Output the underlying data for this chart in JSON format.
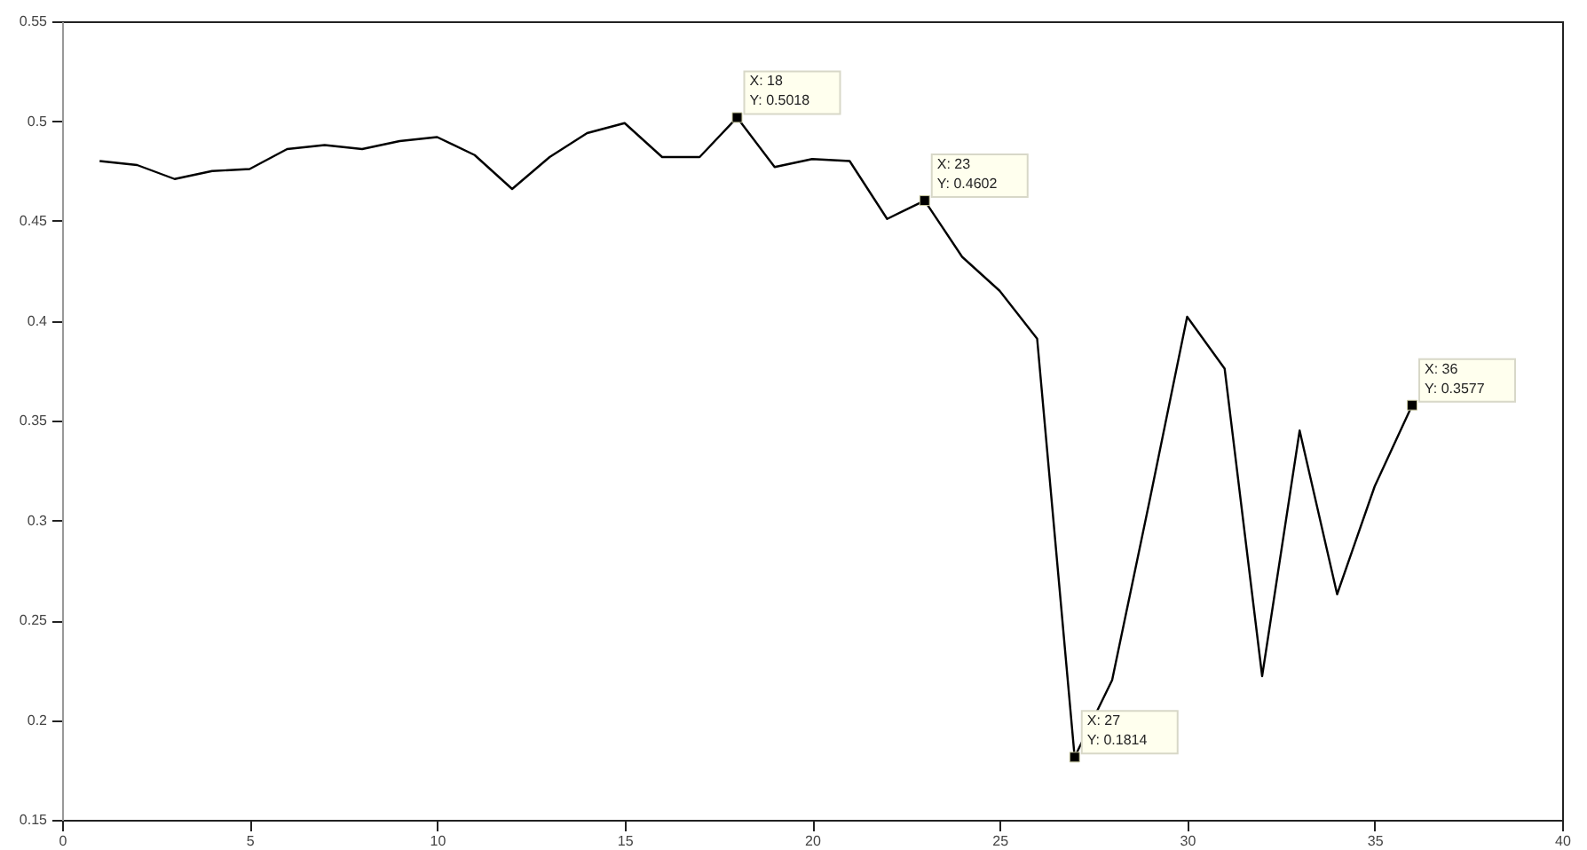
{
  "chart_data": {
    "type": "line",
    "x": [
      1,
      2,
      3,
      4,
      5,
      6,
      7,
      8,
      9,
      10,
      11,
      12,
      13,
      14,
      15,
      16,
      17,
      18,
      19,
      20,
      21,
      22,
      23,
      24,
      25,
      26,
      27,
      28,
      29,
      30,
      31,
      32,
      33,
      34,
      35,
      36
    ],
    "series": [
      {
        "color": "#000000",
        "values": [
          0.48,
          0.478,
          0.471,
          0.475,
          0.476,
          0.486,
          0.488,
          0.486,
          0.49,
          0.492,
          0.483,
          0.466,
          0.482,
          0.494,
          0.499,
          0.482,
          0.482,
          0.5018,
          0.477,
          0.481,
          0.48,
          0.451,
          0.4602,
          0.432,
          0.415,
          0.391,
          0.1814,
          0.22,
          0.31,
          0.402,
          0.376,
          0.222,
          0.345,
          0.263,
          0.317,
          0.3577
        ]
      }
    ],
    "xlim": [
      0,
      40
    ],
    "xticks": [
      0,
      5,
      10,
      15,
      20,
      25,
      30,
      35,
      40
    ],
    "ylim": [
      0.15,
      0.55
    ],
    "yticks": [
      0.15,
      0.2,
      0.25,
      0.3,
      0.35,
      0.4,
      0.45,
      0.5,
      0.55
    ],
    "grid": false,
    "line_style": "solid",
    "annotations": [
      {
        "text": "X: 18\nY: 0.5018",
        "x": 18,
        "y": 0.5018
      },
      {
        "text": "X: 23\nY: 0.4602",
        "x": 23,
        "y": 0.4602
      },
      {
        "text": "X: 27\nY: 0.1814",
        "x": 27,
        "y": 0.1814
      },
      {
        "text": "X: 36\nY: 0.3577",
        "x": 36,
        "y": 0.3577
      }
    ]
  }
}
